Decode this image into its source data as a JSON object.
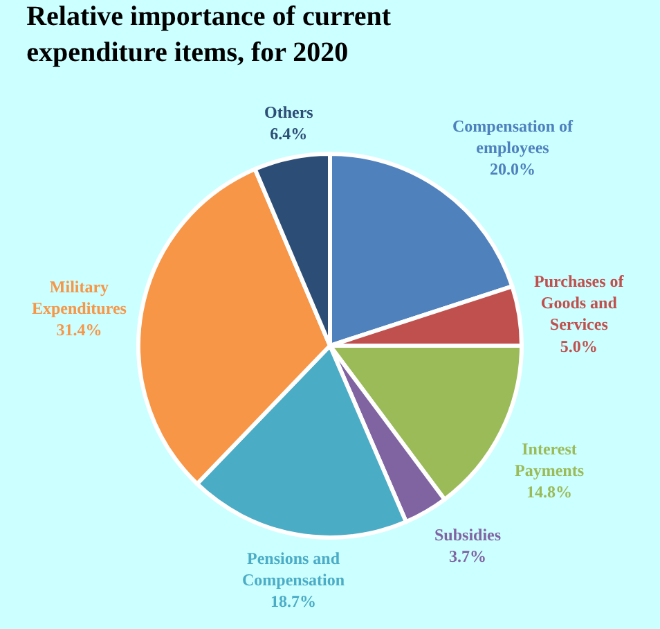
{
  "chart_data": {
    "type": "pie",
    "title": "Relative importance of current expenditure items, for 2020",
    "categories": [
      "Compensation of employees",
      "Purchases of Goods and Services",
      "Interest Payments",
      "Subsidies",
      "Pensions and Compensation",
      "Military Expenditures",
      "Others"
    ],
    "values": [
      20.0,
      5.0,
      14.8,
      3.7,
      18.7,
      31.4,
      6.4
    ],
    "value_labels": [
      "20.0%",
      "5.0%",
      "14.8%",
      "3.7%",
      "18.7%",
      "31.4%",
      "6.4%"
    ],
    "colors": [
      "#4f81bd",
      "#c0504d",
      "#9bbb59",
      "#8064a2",
      "#4bacc6",
      "#f79646",
      "#2c4d75"
    ],
    "legend": false
  }
}
